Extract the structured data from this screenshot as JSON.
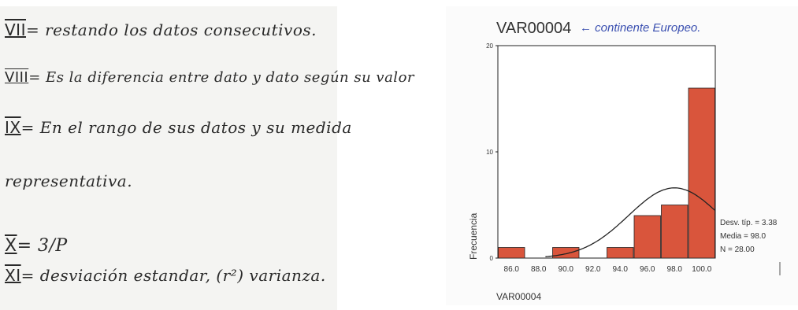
{
  "notes": {
    "lines": [
      {
        "numeral": "VII",
        "text": "= restando los datos consecutivos."
      },
      {
        "numeral": "VIII",
        "text": "= Es la diferencia entre dato y dato según su valor"
      },
      {
        "numeral": "IX",
        "text": "= En el rango de sus datos y su medida"
      },
      {
        "numeral": "",
        "text": "representativa."
      },
      {
        "numeral": "X",
        "text": "= 3/P"
      },
      {
        "numeral": "XI",
        "text": "= desviación estandar, (r²) varianza."
      }
    ]
  },
  "handwritten_note": "← continente Europeo.",
  "chart_data": {
    "type": "bar",
    "title": "VAR00004",
    "xlabel": "VAR00004",
    "ylabel": "Frecuencia",
    "ylim": [
      0,
      20
    ],
    "yticks": [
      "0",
      "10",
      "20"
    ],
    "xticks": [
      "86.0",
      "88.0",
      "90.0",
      "92.0",
      "94.0",
      "96.0",
      "98.0",
      "100.0"
    ],
    "categories": [
      "86.0",
      "88.0",
      "90.0",
      "92.0",
      "94.0",
      "96.0",
      "98.0",
      "100.0"
    ],
    "values": [
      1,
      0,
      1,
      0,
      1,
      4,
      5,
      16
    ],
    "bar_color": "#d9553c",
    "normal_curve": {
      "mean": 98.0,
      "sd": 3.38,
      "n": 28
    },
    "stats": [
      "Desv. típ. = 3.38",
      "Media = 98.0",
      "N = 28.00"
    ]
  }
}
